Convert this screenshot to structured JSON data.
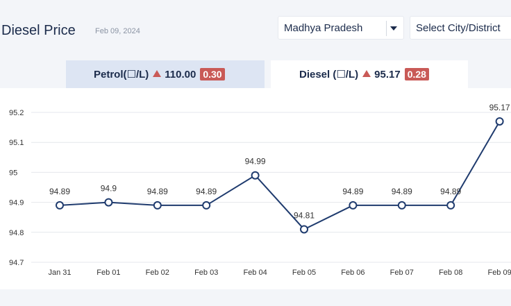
{
  "header": {
    "title": "Diesel Price",
    "date": "Feb 09, 2024",
    "state_select": {
      "value": "Madhya Pradesh"
    },
    "city_select": {
      "placeholder": "Select City/District"
    }
  },
  "tabs": [
    {
      "name": "Petrol(☐/L)",
      "price": "110.00",
      "change": "0.30",
      "trend": "up"
    },
    {
      "name": "Diesel (☐/L)",
      "price": "95.17",
      "change": "0.28",
      "trend": "up",
      "active": true
    }
  ],
  "colors": {
    "line": "#1f3b6e",
    "up_badge": "#c95a57",
    "active_tab": "#ffffff",
    "inactive_tab": "#dde5f3"
  },
  "chart_data": {
    "type": "line",
    "categories": [
      "Jan 31",
      "Feb 01",
      "Feb 02",
      "Feb 03",
      "Feb 04",
      "Feb 05",
      "Feb 06",
      "Feb 07",
      "Feb 08",
      "Feb 09"
    ],
    "values": [
      94.89,
      94.9,
      94.89,
      94.89,
      94.99,
      94.81,
      94.89,
      94.89,
      94.89,
      95.17
    ],
    "data_labels": [
      "94.89",
      "94.9",
      "94.89",
      "94.89",
      "94.99",
      "94.81",
      "94.89",
      "94.89",
      "94.89",
      "95.17"
    ],
    "y_ticks": [
      "94.7",
      "94.8",
      "94.9",
      "95",
      "95.1",
      "95.2"
    ],
    "ylim": [
      94.7,
      95.2
    ],
    "grid": true
  }
}
